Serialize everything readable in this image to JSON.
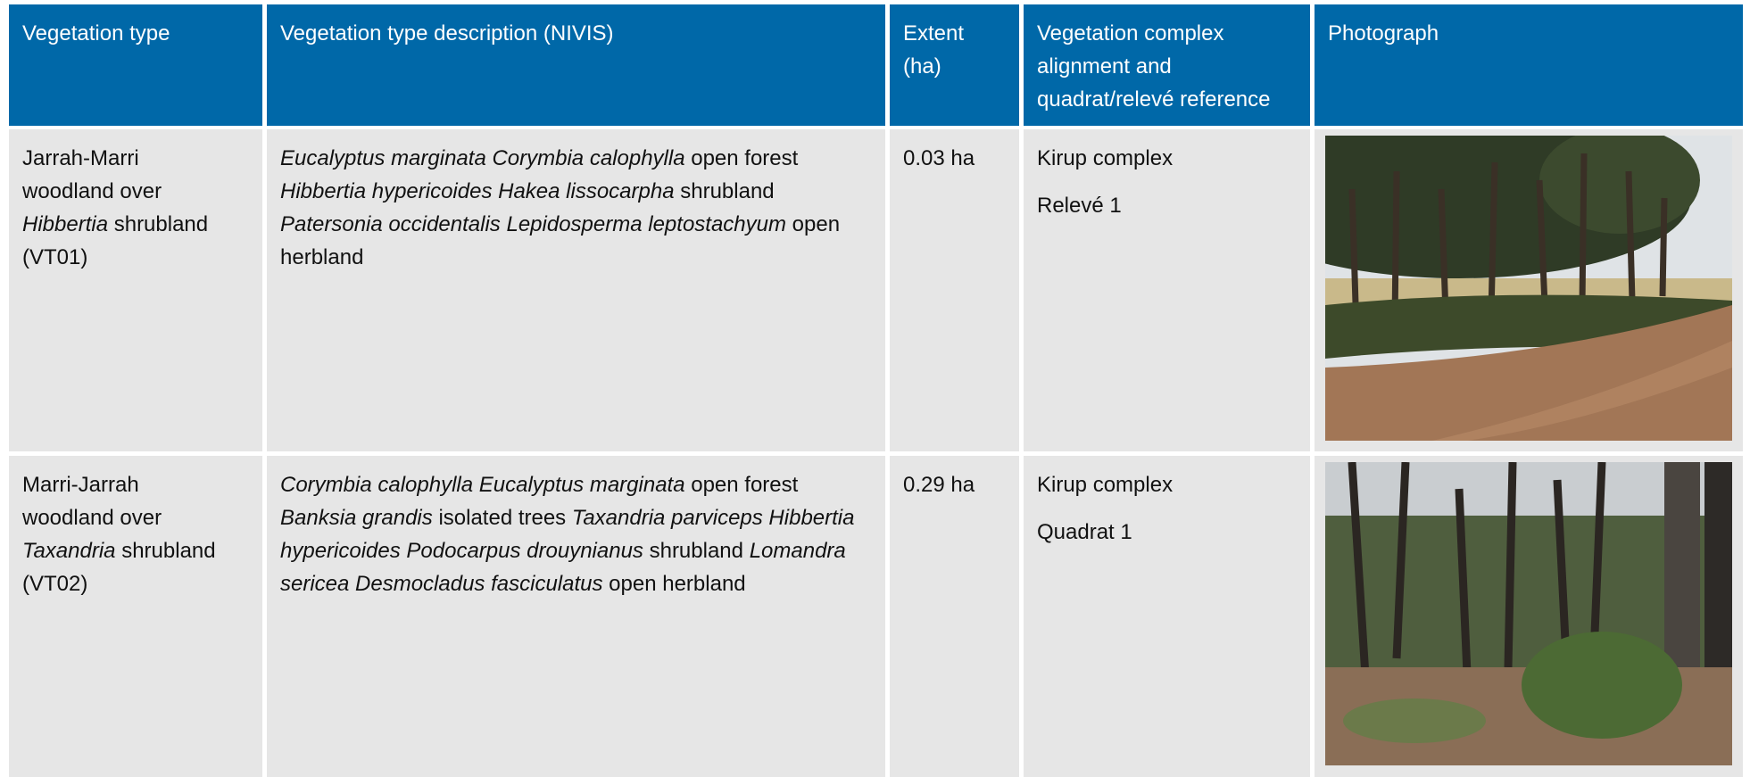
{
  "table": {
    "header": [
      "Vegetation type",
      "Vegetation type description (NIVIS)",
      "Extent (ha)",
      "Vegetation complex alignment and quadrat/relevé reference",
      "Photograph"
    ],
    "rows": [
      {
        "type": [
          "Jarrah-Marri woodland over",
          "Hibbertia",
          "shrubland (VT01)"
        ],
        "description": [
          "Eucalyptus marginata Corymbia calophylla",
          "open forest",
          "Hibbertia hypericoides Hakea lissocarpha",
          "shrubland",
          "Patersonia occidentalis Lepidosperma leptostachyum",
          "open herbland"
        ],
        "extent": "0.03 ha",
        "complex": "Kirup complex",
        "reference": "Relevé 1"
      },
      {
        "type": [
          "Marri-Jarrah woodland over",
          "Taxandria",
          "shrubland (VT02)"
        ],
        "description": [
          "Corymbia calophylla Eucalyptus marginata",
          "open forest",
          "Banksia grandis",
          "isolated trees",
          "Taxandria parviceps Hibbertia hypericoides Podocarpus drouynianus",
          "shrubland",
          "Lomandra sericea Desmocladus fasciculatus",
          "open herbland"
        ],
        "extent": "0.29 ha",
        "complex": "Kirup complex",
        "reference": "Quadrat 1"
      }
    ]
  }
}
